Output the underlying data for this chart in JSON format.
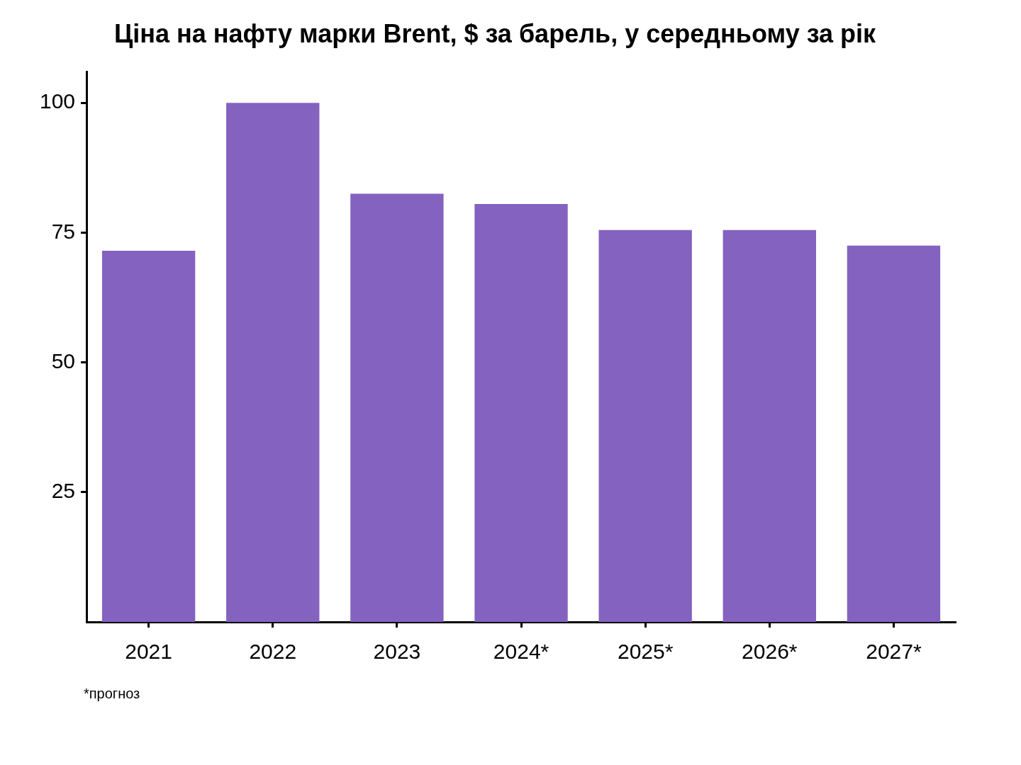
{
  "chart_data": {
    "type": "bar",
    "title": "Ціна на нафту марки Brent, $ за барель, у середньому за рік",
    "categories": [
      "2021",
      "2022",
      "2023",
      "2024*",
      "2025*",
      "2026*",
      "2027*"
    ],
    "values": [
      71.5,
      100,
      82.5,
      80.5,
      75.5,
      75.5,
      72.5
    ],
    "color": "#8462c0",
    "ylim": [
      0,
      106
    ],
    "yticks": [
      25,
      50,
      75,
      100
    ],
    "grid": false,
    "legend": false,
    "annotations": [
      "*прогноз"
    ]
  }
}
